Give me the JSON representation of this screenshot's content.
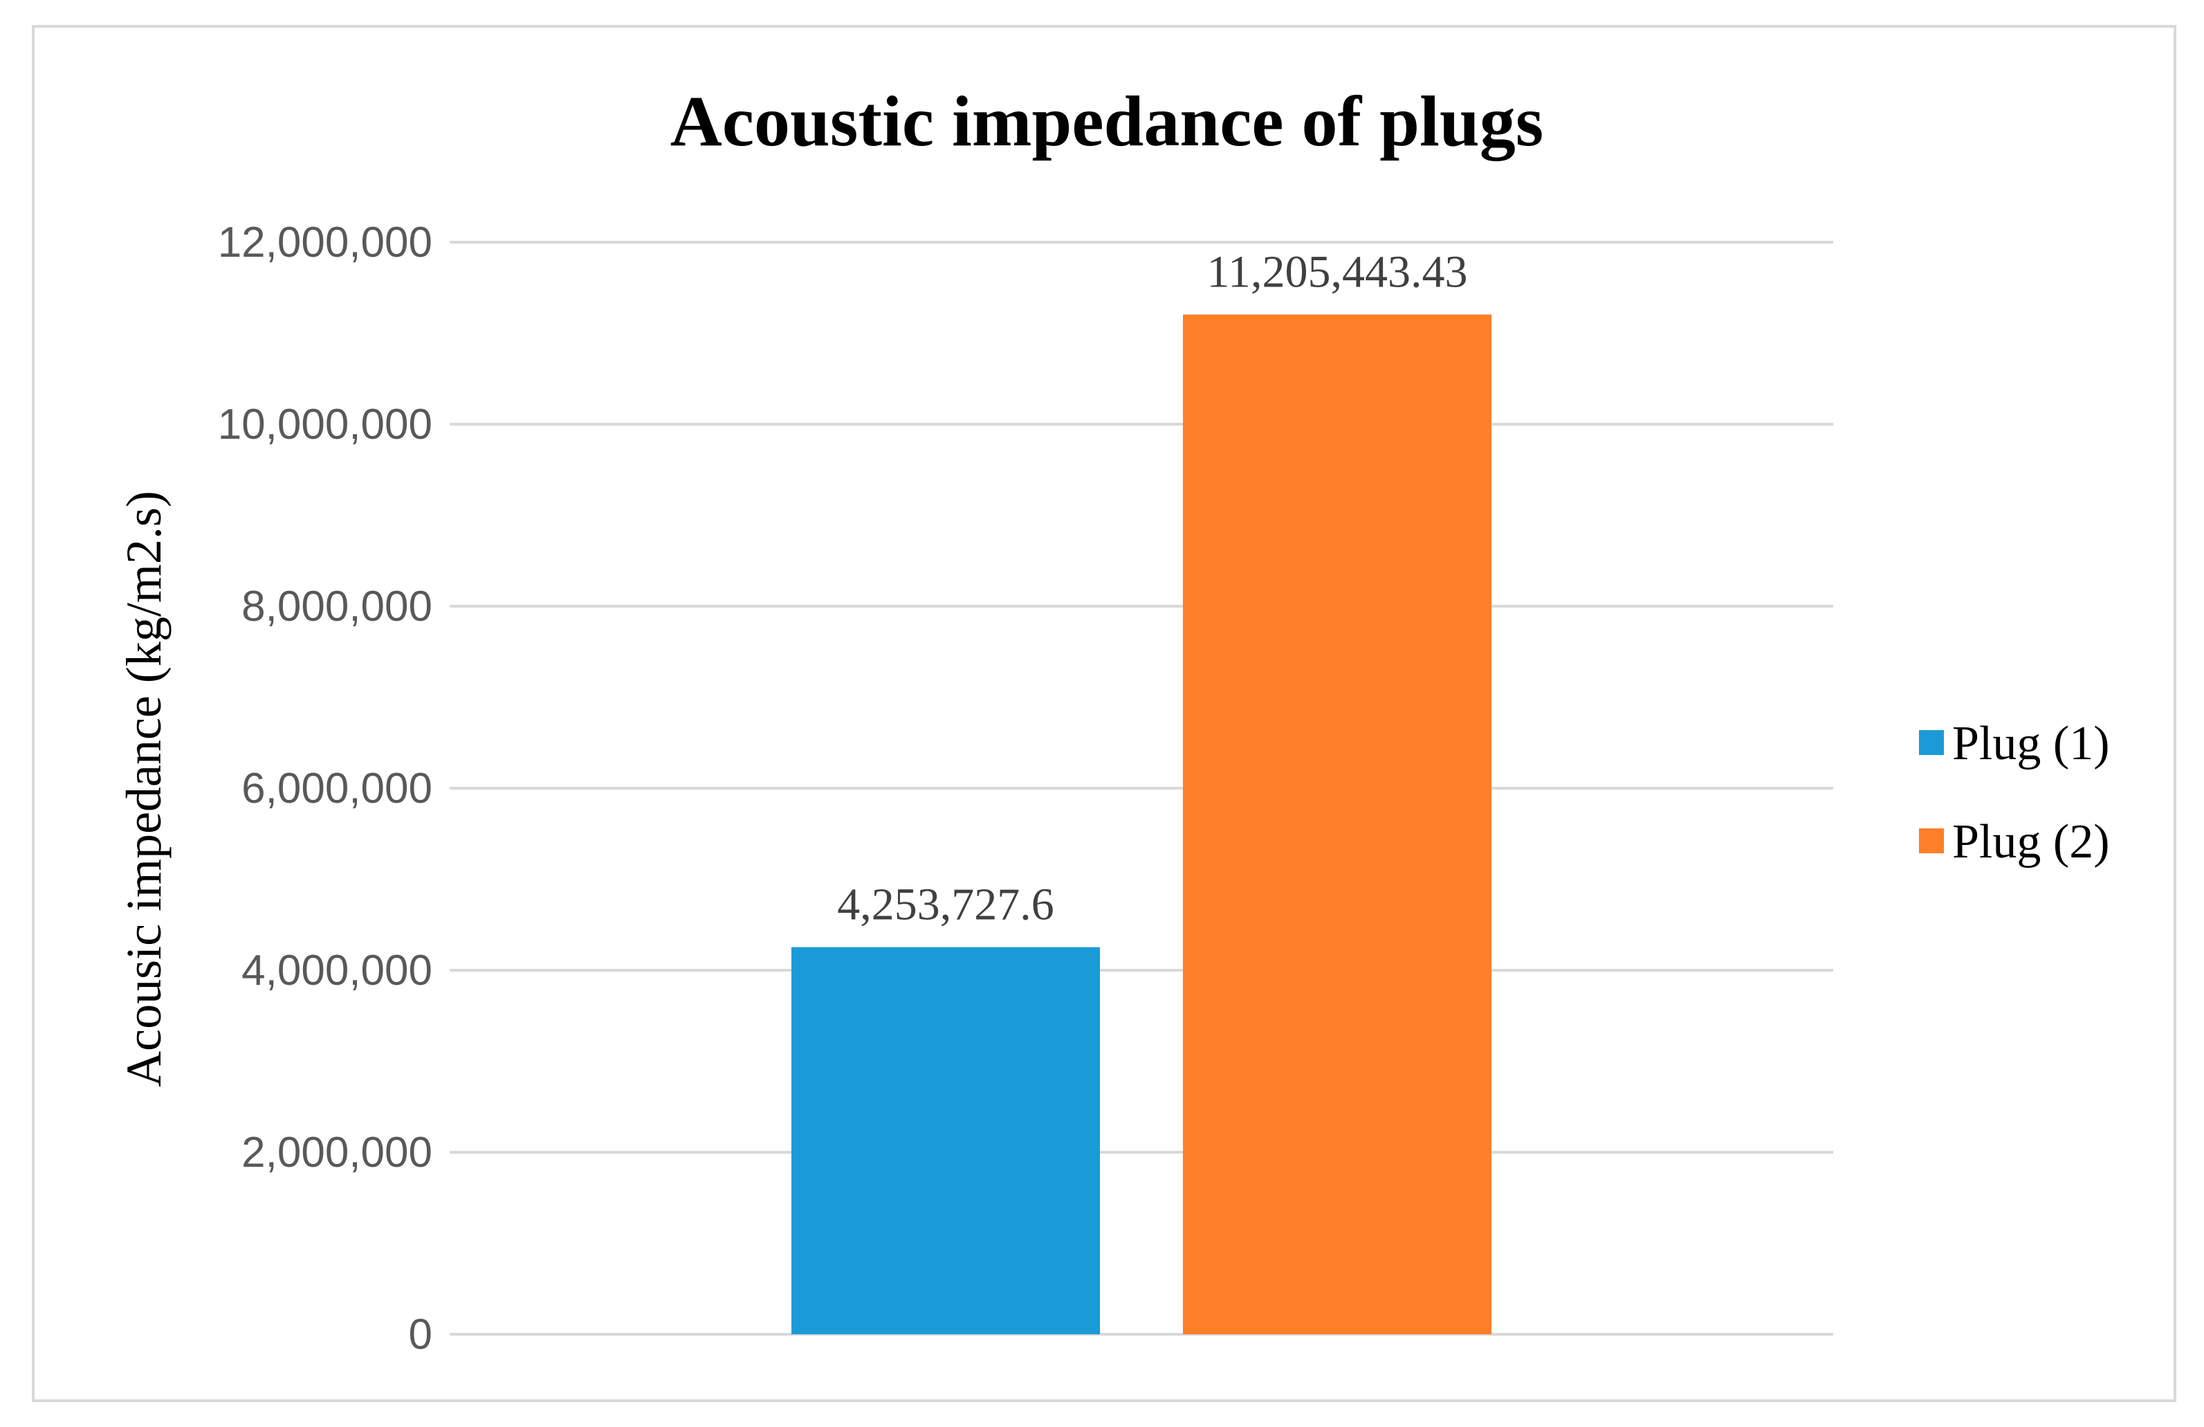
{
  "chart_data": {
    "type": "bar",
    "title": "Acoustic impedance of plugs",
    "xlabel": "",
    "ylabel": "Acousic impedance (kg/m2.s)",
    "ylim": [
      0,
      12000000
    ],
    "yticks": [
      0,
      2000000,
      4000000,
      6000000,
      8000000,
      10000000,
      12000000
    ],
    "ytick_labels": [
      "0",
      "2,000,000",
      "4,000,000",
      "6,000,000",
      "8,000,000",
      "10,000,000",
      "12,000,000"
    ],
    "grid": true,
    "legend_position": "right",
    "series": [
      {
        "name": "Plug (1)",
        "value": 4253727.6,
        "data_label": "4,253,727.6",
        "color": "#1a9bd7"
      },
      {
        "name": "Plug (2)",
        "value": 11205443.43,
        "data_label": "11,205,443.43",
        "color": "#fd7f27"
      }
    ]
  }
}
